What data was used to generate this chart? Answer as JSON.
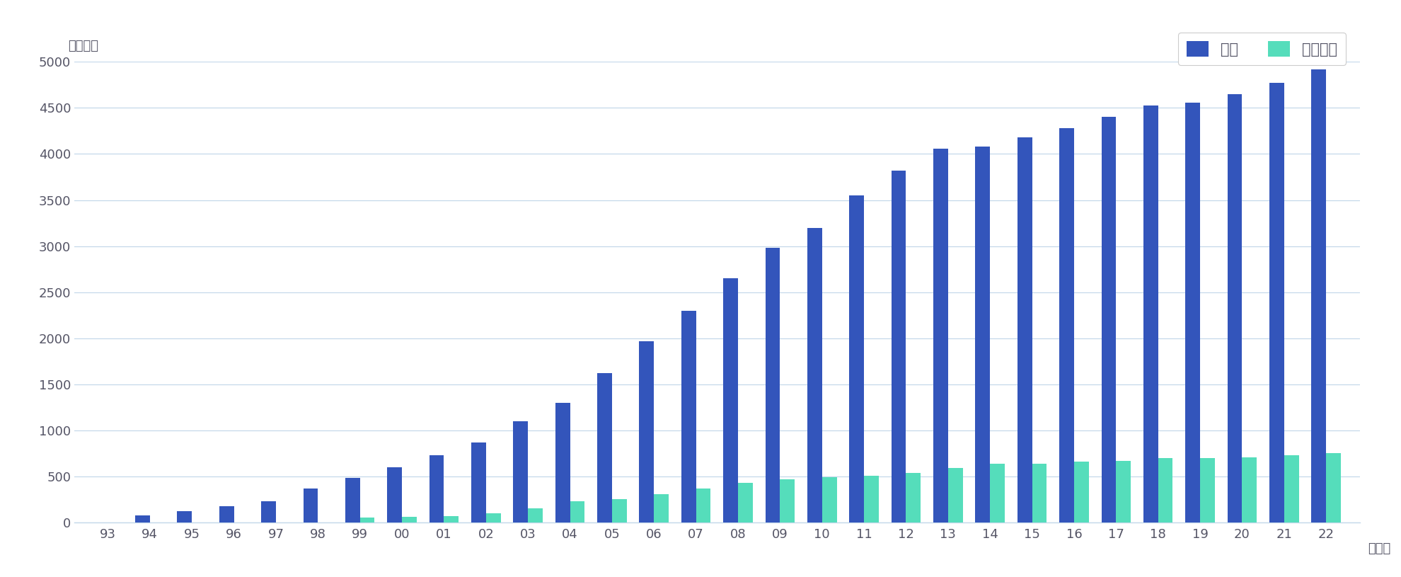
{
  "years": [
    "93",
    "94",
    "95",
    "96",
    "97",
    "98",
    "99",
    "00",
    "01",
    "02",
    "03",
    "04",
    "05",
    "06",
    "07",
    "08",
    "09",
    "10",
    "11",
    "12",
    "13",
    "14",
    "15",
    "16",
    "17",
    "18",
    "19",
    "20",
    "21",
    "22"
  ],
  "chosa": [
    0,
    80,
    120,
    180,
    230,
    370,
    480,
    600,
    730,
    870,
    1100,
    1300,
    1620,
    1970,
    2300,
    2650,
    2980,
    3200,
    3550,
    3820,
    4060,
    4080,
    4180,
    4280,
    4400,
    4530,
    4560,
    4650,
    4770,
    4920
  ],
  "joka": [
    0,
    0,
    0,
    0,
    0,
    0,
    50,
    60,
    70,
    100,
    150,
    230,
    250,
    310,
    370,
    430,
    470,
    490,
    510,
    540,
    590,
    640,
    640,
    660,
    670,
    700,
    700,
    710,
    730,
    750
  ],
  "chosa_color": "#3355bb",
  "joka_color": "#55ddbb",
  "background_color": "#ffffff",
  "plot_bg_color": "#ffffff",
  "grid_color": "#c5d8ea",
  "text_color": "#555566",
  "title_y_label": "（件数）",
  "x_suffix": "（年）",
  "legend_chosa": "調査",
  "legend_joka": "浄化工事",
  "ylim": [
    0,
    5000
  ],
  "yticks": [
    0,
    500,
    1000,
    1500,
    2000,
    2500,
    3000,
    3500,
    4000,
    4500,
    5000
  ],
  "bar_width": 0.35,
  "figsize": [
    19.8,
    8.15
  ],
  "dpi": 100
}
